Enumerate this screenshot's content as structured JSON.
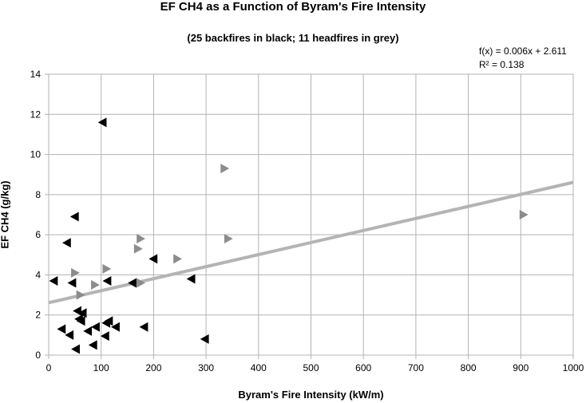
{
  "chart_data": {
    "type": "scatter",
    "title": "EF CH4 as a Function of Byram's Fire Intensity",
    "subtitle": "(25 backfires in black; 11 headfires in grey)",
    "xlabel": "Byram's Fire Intensity (kW/m)",
    "ylabel": "EF CH4 (g/kg)",
    "xlim": [
      0,
      1000
    ],
    "ylim": [
      0,
      14
    ],
    "x_ticks": [
      "0",
      "100",
      "200",
      "300",
      "400",
      "500",
      "600",
      "700",
      "800",
      "900",
      "1000"
    ],
    "y_ticks": [
      "0",
      "2",
      "4",
      "6",
      "8",
      "10",
      "12",
      "14"
    ],
    "grid": true,
    "trendline": {
      "equation": "f(x) = 0.006x + 2.611",
      "r_squared": "R² = 0.138",
      "slope": 0.006,
      "intercept": 2.611,
      "color": "#b4b4b4"
    },
    "series": [
      {
        "marker": "left-triangle",
        "color": "#000000",
        "points": [
          [
            103,
            11.6
          ],
          [
            50,
            6.9
          ],
          [
            35,
            5.6
          ],
          [
            10,
            3.7
          ],
          [
            45,
            3.6
          ],
          [
            112,
            3.7
          ],
          [
            160,
            3.6
          ],
          [
            200,
            4.8
          ],
          [
            272,
            3.8
          ],
          [
            55,
            2.2
          ],
          [
            65,
            2.1
          ],
          [
            58,
            1.8
          ],
          [
            62,
            1.7
          ],
          [
            75,
            1.2
          ],
          [
            90,
            1.4
          ],
          [
            110,
            1.6
          ],
          [
            115,
            1.7
          ],
          [
            128,
            1.4
          ],
          [
            182,
            1.4
          ],
          [
            25,
            1.3
          ],
          [
            40,
            1.0
          ],
          [
            108,
            0.95
          ],
          [
            85,
            0.5
          ],
          [
            52,
            0.3
          ],
          [
            298,
            0.8
          ]
        ]
      },
      {
        "marker": "right-triangle",
        "color": "#8c8c8c",
        "points": [
          [
            335,
            9.3
          ],
          [
            905,
            7.0
          ],
          [
            175,
            5.8
          ],
          [
            170,
            5.3
          ],
          [
            342,
            5.8
          ],
          [
            245,
            4.8
          ],
          [
            110,
            4.3
          ],
          [
            50,
            4.1
          ],
          [
            88,
            3.5
          ],
          [
            175,
            3.6
          ],
          [
            60,
            3.0
          ]
        ]
      }
    ]
  }
}
